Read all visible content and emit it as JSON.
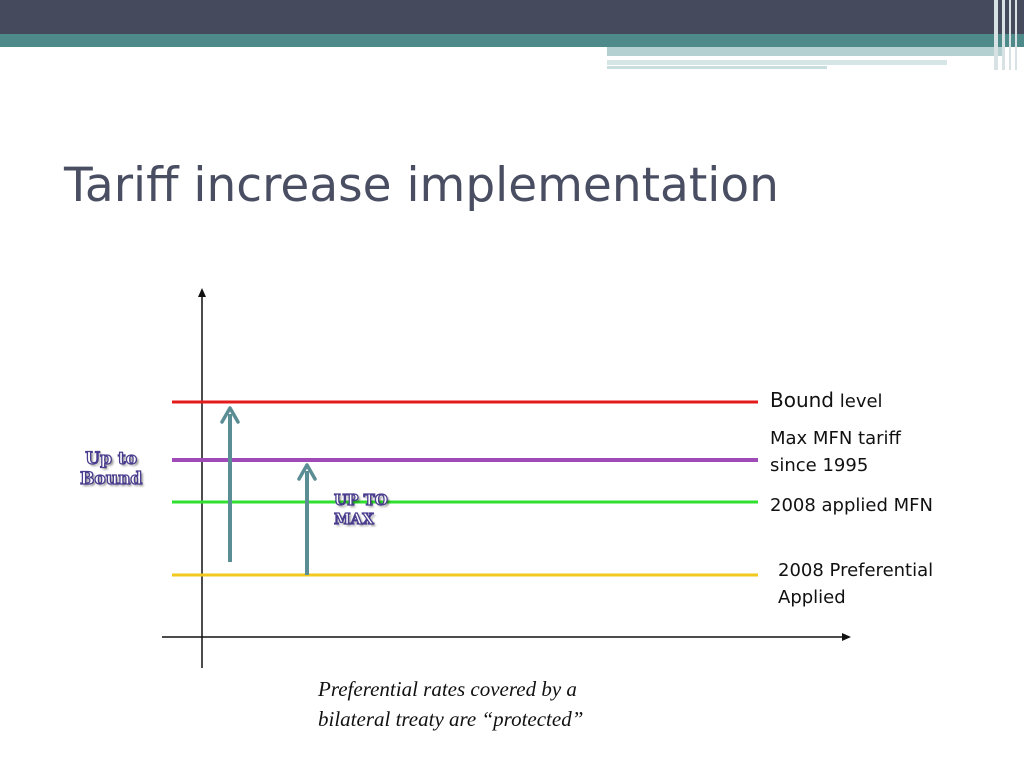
{
  "slide": {
    "title": "Tariff increase implementation"
  },
  "colors": {
    "bound": "#e31b1b",
    "max_mfn": "#a04ab8",
    "applied_mfn": "#2fe02f",
    "preferential": "#f3c81e",
    "arrow": "#5a8d94"
  },
  "levels": {
    "bound_main": "Bound",
    "bound_suffix": "level",
    "max_mfn_line1": "Max MFN tariff",
    "max_mfn_line2": "since 1995",
    "applied_mfn": "2008 applied MFN",
    "preferential_line1": "2008 Preferential",
    "preferential_line2": "Applied"
  },
  "arrows": {
    "up_to_bound_line1": "Up to",
    "up_to_bound_line2": "Bound",
    "up_to_max_line1": "UP TO",
    "up_to_max_line2": "MAX"
  },
  "caption": {
    "line1": "Preferential rates covered by a",
    "line2": "bilateral treaty are “protected”"
  }
}
